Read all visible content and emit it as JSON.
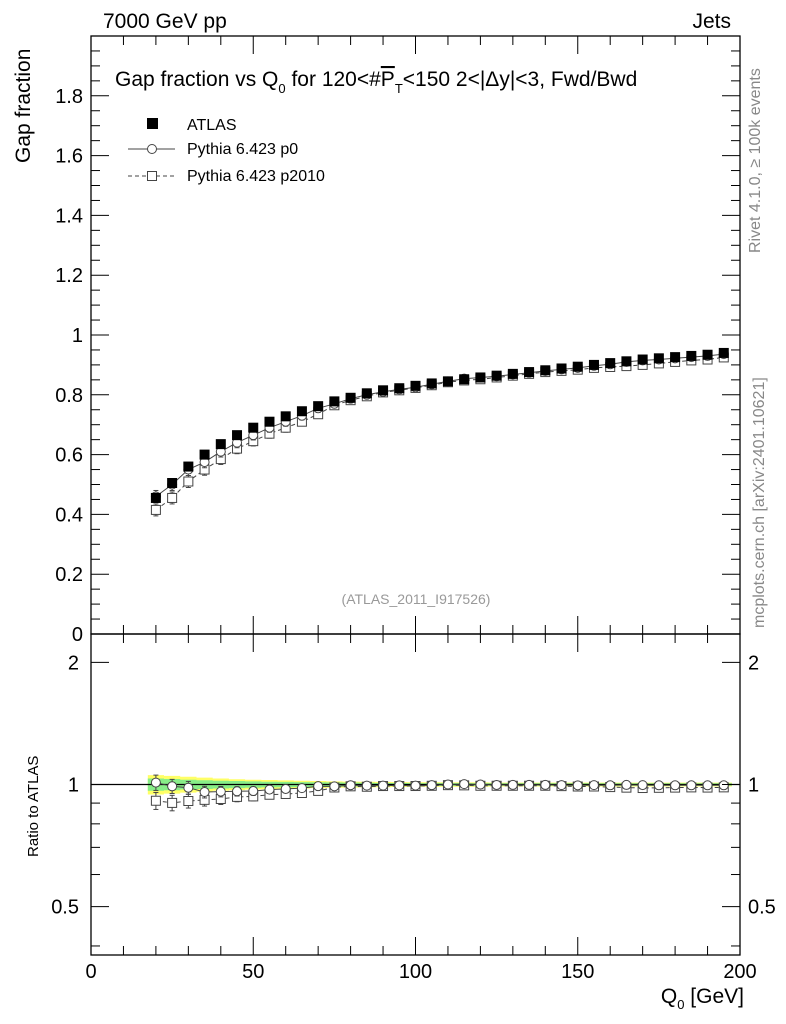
{
  "header": {
    "left": "7000 GeV pp",
    "right": "Jets"
  },
  "side_labels": {
    "rivet": "Rivet 4.1.0, ≥ 100k events",
    "mcplots": "mcplots.cern.ch [arXiv:2401.10621]"
  },
  "chart_data": {
    "type": "scatter",
    "title": "Gap fraction vs Q0 for 120<#PT<150  2<|Δy|<3, Fwd/Bwd",
    "title_parts": {
      "pre": "Gap fraction vs Q",
      "sub0": "0",
      "mid": " for 120<#",
      "pbar": "P",
      "subT": "T",
      "post": "<150  2<|Δy|<3, Fwd/Bwd"
    },
    "xlabel": "Q",
    "xlabel_sub": "0",
    "xlabel_unit": " [GeV]",
    "ylabel": "Gap fraction",
    "ratio_ylabel": "Ratio to ATLAS",
    "analysis_id": "(ATLAS_2011_I917526)",
    "xlim": [
      0,
      200
    ],
    "ylim": [
      0,
      2.0
    ],
    "ratio_ylim": [
      0.38,
      2.35
    ],
    "x_ticks": [
      "0",
      "50",
      "100",
      "150",
      "200"
    ],
    "y_ticks": [
      "0",
      "0.2",
      "0.4",
      "0.6",
      "0.8",
      "1",
      "1.2",
      "1.4",
      "1.6",
      "1.8"
    ],
    "ratio_ticks": [
      "0.5",
      "1",
      "2"
    ],
    "x": [
      20,
      25,
      30,
      35,
      40,
      45,
      50,
      55,
      60,
      65,
      70,
      75,
      80,
      85,
      90,
      95,
      100,
      105,
      110,
      115,
      120,
      125,
      130,
      135,
      140,
      145,
      150,
      155,
      160,
      165,
      170,
      175,
      180,
      185,
      190,
      195
    ],
    "series": [
      {
        "name": "ATLAS",
        "marker": "filled-square",
        "values": [
          0.455,
          0.505,
          0.56,
          0.6,
          0.635,
          0.665,
          0.69,
          0.71,
          0.728,
          0.745,
          0.762,
          0.778,
          0.79,
          0.805,
          0.815,
          0.822,
          0.83,
          0.838,
          0.845,
          0.852,
          0.858,
          0.864,
          0.87,
          0.876,
          0.882,
          0.888,
          0.894,
          0.9,
          0.906,
          0.912,
          0.918,
          0.922,
          0.926,
          0.93,
          0.934,
          0.94
        ],
        "errors": [
          0.015,
          0.015,
          0.014,
          0.013,
          0.012,
          0.011,
          0.01,
          0.01,
          0.009,
          0.009,
          0.009,
          0.008,
          0.008,
          0.008,
          0.007,
          0.007,
          0.007,
          0.007,
          0.006,
          0.006,
          0.006,
          0.006,
          0.006,
          0.006,
          0.005,
          0.005,
          0.005,
          0.005,
          0.005,
          0.005,
          0.005,
          0.005,
          0.005,
          0.005,
          0.005,
          0.005
        ]
      },
      {
        "name": "Pythia 6.423 p0",
        "marker": "open-circle",
        "line": "solid",
        "values": [
          0.46,
          0.5,
          0.55,
          0.575,
          0.61,
          0.64,
          0.665,
          0.69,
          0.71,
          0.73,
          0.755,
          0.77,
          0.787,
          0.8,
          0.81,
          0.818,
          0.825,
          0.835,
          0.845,
          0.854,
          0.858,
          0.862,
          0.868,
          0.874,
          0.88,
          0.885,
          0.89,
          0.897,
          0.902,
          0.91,
          0.915,
          0.918,
          0.922,
          0.926,
          0.93,
          0.936
        ],
        "errors": [
          0.02,
          0.02,
          0.02,
          0.019,
          0.018,
          0.017,
          0.016,
          0.015,
          0.015,
          0.014,
          0.014,
          0.013,
          0.013,
          0.012,
          0.012,
          0.012,
          0.011,
          0.011,
          0.011,
          0.01,
          0.01,
          0.01,
          0.01,
          0.01,
          0.01,
          0.01,
          0.009,
          0.009,
          0.009,
          0.009,
          0.009,
          0.009,
          0.009,
          0.009,
          0.009,
          0.009
        ]
      },
      {
        "name": "Pythia 6.423 p2010",
        "marker": "open-square",
        "line": "dashed",
        "values": [
          0.415,
          0.455,
          0.51,
          0.55,
          0.585,
          0.62,
          0.645,
          0.67,
          0.69,
          0.71,
          0.735,
          0.765,
          0.782,
          0.795,
          0.808,
          0.815,
          0.823,
          0.832,
          0.842,
          0.848,
          0.852,
          0.858,
          0.864,
          0.87,
          0.876,
          0.88,
          0.884,
          0.89,
          0.893,
          0.896,
          0.9,
          0.905,
          0.91,
          0.915,
          0.918,
          0.925
        ],
        "errors": [
          0.02,
          0.02,
          0.02,
          0.019,
          0.018,
          0.017,
          0.016,
          0.015,
          0.015,
          0.014,
          0.014,
          0.013,
          0.013,
          0.012,
          0.012,
          0.012,
          0.011,
          0.011,
          0.011,
          0.01,
          0.01,
          0.01,
          0.01,
          0.01,
          0.01,
          0.01,
          0.009,
          0.009,
          0.009,
          0.009,
          0.009,
          0.009,
          0.009,
          0.009,
          0.009,
          0.009
        ]
      }
    ],
    "ratio_band_inner_halfwidth": [
      0.035,
      0.032,
      0.028,
      0.025,
      0.022,
      0.02,
      0.018,
      0.016,
      0.015,
      0.014,
      0.013,
      0.012,
      0.011,
      0.01,
      0.009,
      0.009,
      0.008,
      0.008,
      0.008,
      0.008,
      0.007,
      0.007,
      0.007,
      0.007,
      0.007,
      0.007,
      0.007,
      0.007,
      0.007,
      0.007,
      0.007,
      0.007,
      0.007,
      0.007,
      0.007,
      0.007
    ],
    "ratio_band_outer_halfwidth": [
      0.055,
      0.05,
      0.045,
      0.04,
      0.035,
      0.031,
      0.028,
      0.026,
      0.024,
      0.022,
      0.02,
      0.018,
      0.017,
      0.016,
      0.015,
      0.014,
      0.013,
      0.013,
      0.012,
      0.012,
      0.012,
      0.011,
      0.011,
      0.011,
      0.011,
      0.011,
      0.011,
      0.011,
      0.011,
      0.011,
      0.011,
      0.011,
      0.011,
      0.011,
      0.011,
      0.011
    ],
    "colors": {
      "data": "#000000",
      "mc": "#444444",
      "band_inner": "#88ee88",
      "band_outer": "#ffff66"
    }
  }
}
